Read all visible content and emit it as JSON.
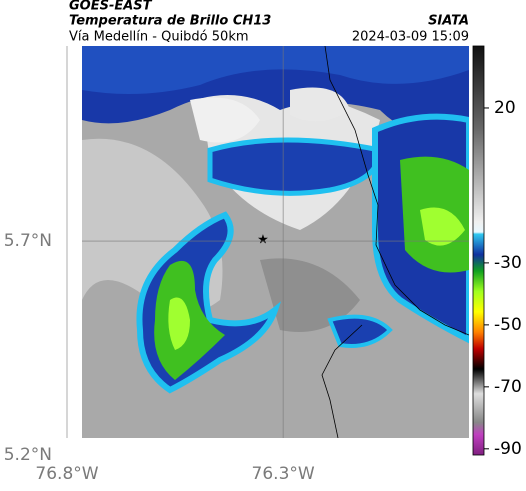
{
  "header": {
    "source": "GOES-EAST",
    "title": "Temperatura de Brillo CH13",
    "subtitle": "Vía Medellín - Quibdó 50km",
    "agency": "SIATA",
    "timestamp": "2024-03-09 15:09"
  },
  "map": {
    "xlim": [
      -76.8,
      -75.87
    ],
    "ylim": [
      5.2,
      6.156
    ],
    "xticks": [
      {
        "value": -76.8,
        "label": "76.8°W"
      },
      {
        "value": -76.3,
        "label": "76.3°W"
      }
    ],
    "yticks": [
      {
        "value": 5.7,
        "label": "5.7°N"
      },
      {
        "value": 5.2,
        "label": "5.2°N"
      }
    ]
  },
  "colorbar": {
    "clim": [
      -92,
      40
    ],
    "ticks": [
      20,
      -30,
      -50,
      -70,
      -90
    ]
  }
}
